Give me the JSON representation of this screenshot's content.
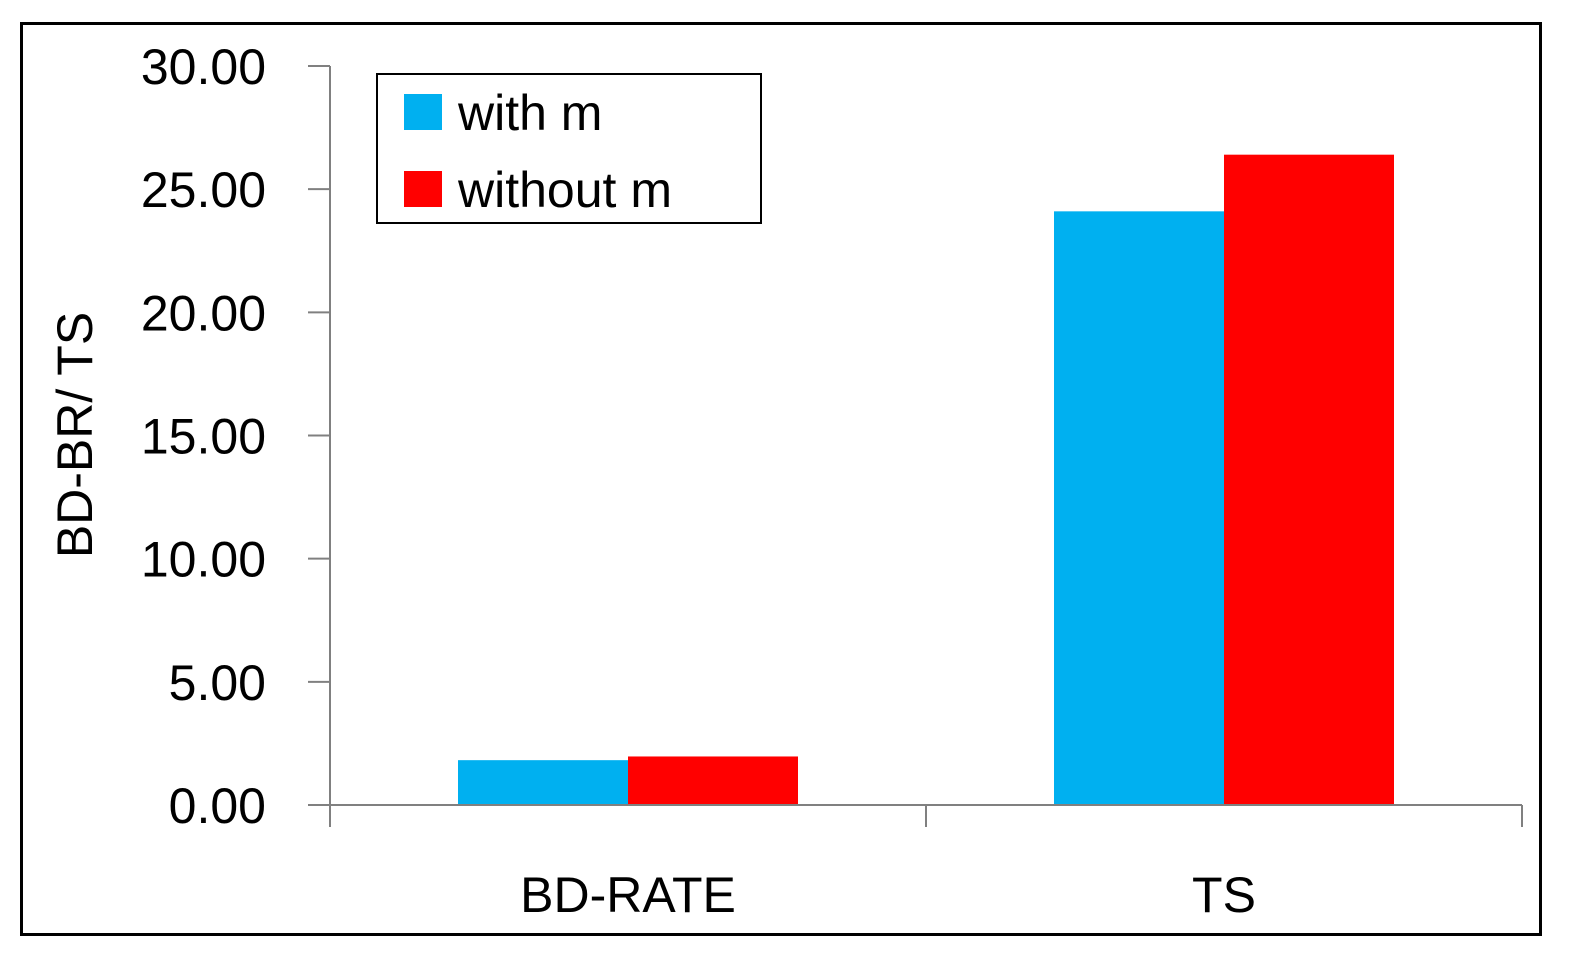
{
  "chart_data": {
    "type": "bar",
    "title": "",
    "xlabel": "",
    "ylabel": "BD-BR/ TS",
    "categories": [
      "BD-RATE",
      "TS"
    ],
    "series": [
      {
        "name": "with m",
        "values": [
          1.82,
          24.1
        ],
        "color": "#00B0F0"
      },
      {
        "name": "without m",
        "values": [
          1.97,
          26.4
        ],
        "color": "#FF0000"
      }
    ],
    "ylim": [
      0,
      30
    ],
    "ytick_labels": [
      "0.00",
      "5.00",
      "10.00",
      "15.00",
      "20.00",
      "25.00",
      "30.00"
    ],
    "grid": false,
    "legend_position": "top-left",
    "axis_color": "#808080"
  }
}
